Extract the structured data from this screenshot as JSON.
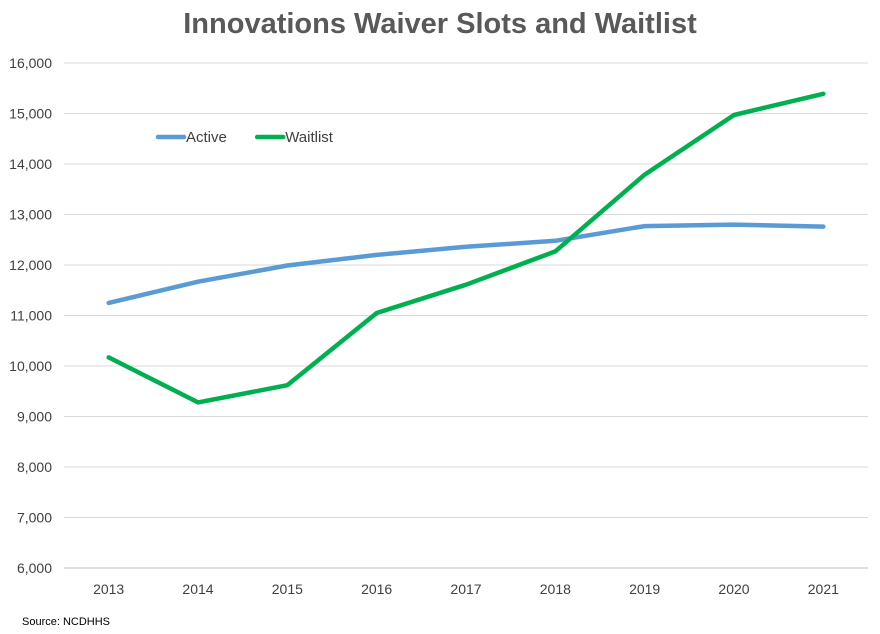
{
  "chart_data": {
    "type": "line",
    "title": "Innovations Waiver Slots and Waitlist",
    "xlabel": "",
    "ylabel": "",
    "categories": [
      "2013",
      "2014",
      "2015",
      "2016",
      "2017",
      "2018",
      "2019",
      "2020",
      "2021"
    ],
    "ylim": [
      6000,
      16000
    ],
    "yticks": [
      "6,000",
      "7,000",
      "8,000",
      "9,000",
      "10,000",
      "11,000",
      "12,000",
      "13,000",
      "14,000",
      "15,000",
      "16,000"
    ],
    "ytick_values": [
      6000,
      7000,
      8000,
      9000,
      10000,
      11000,
      12000,
      13000,
      14000,
      15000,
      16000
    ],
    "grid": "horizontal",
    "legend_position": "top-left",
    "series": [
      {
        "name": "Active",
        "color": "#5b9bd5",
        "values": [
          11250,
          11670,
          11990,
          12200,
          12360,
          12480,
          12770,
          12800,
          12760
        ]
      },
      {
        "name": "Waitlist",
        "color": "#00b050",
        "values": [
          10170,
          9280,
          9620,
          11050,
          11610,
          12270,
          13790,
          14970,
          15390
        ]
      }
    ]
  },
  "footer": {
    "source": "Source: NCDHHS"
  }
}
